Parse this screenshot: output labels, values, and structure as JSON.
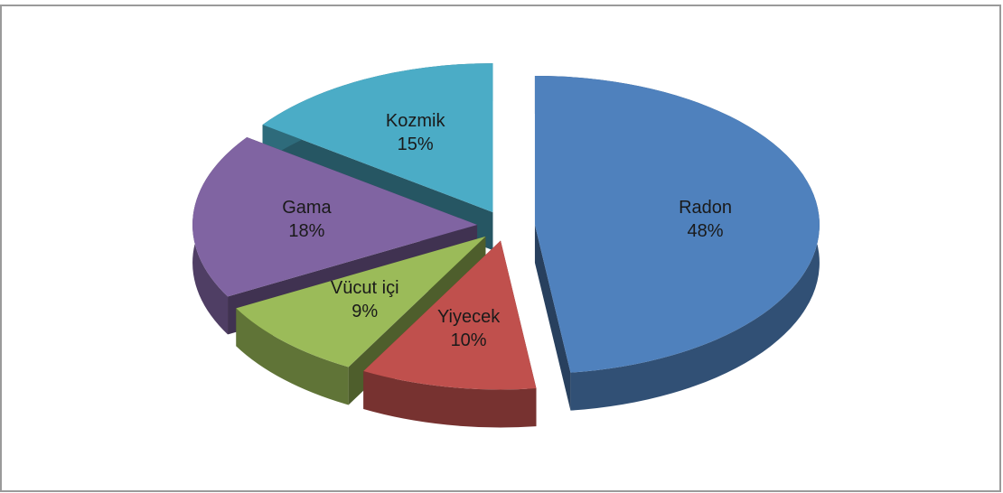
{
  "chart_data": {
    "type": "pie",
    "categories": [
      "Radon",
      "Yiyecek",
      "Vücut içi",
      "Gama",
      "Kozmik"
    ],
    "values": [
      48,
      10,
      9,
      18,
      15
    ],
    "value_labels": [
      "48%",
      "10%",
      "9%",
      "18%",
      "15%"
    ],
    "colors": [
      "#4f81bd",
      "#c0504d",
      "#9bbb59",
      "#8064a2",
      "#4bacc6"
    ]
  }
}
